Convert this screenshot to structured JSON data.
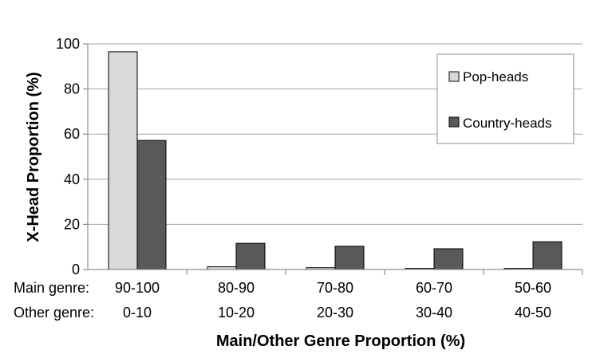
{
  "chart_data": {
    "type": "bar",
    "categories": [
      "90-100",
      "80-90",
      "70-80",
      "60-70",
      "50-60"
    ],
    "secondary_categories": [
      "0-10",
      "10-20",
      "20-30",
      "30-40",
      "40-50"
    ],
    "row_labels": {
      "main": "Main genre:",
      "other": "Other genre:"
    },
    "series": [
      {
        "name": "Pop-heads",
        "color": "#d9d9d9",
        "values": [
          96.5,
          1.2,
          0.8,
          0.5,
          0.5
        ]
      },
      {
        "name": "Country-heads",
        "color": "#595959",
        "values": [
          57.2,
          11.6,
          10.3,
          9.2,
          12.3
        ]
      }
    ],
    "title": "",
    "xlabel": "Main/Other Genre Proportion (%)",
    "ylabel": "X-Head Proportion (%)",
    "ylim": [
      0,
      100
    ],
    "yticks": [
      0,
      20,
      40,
      60,
      80,
      100
    ],
    "grid": true,
    "legend": "top-right"
  }
}
